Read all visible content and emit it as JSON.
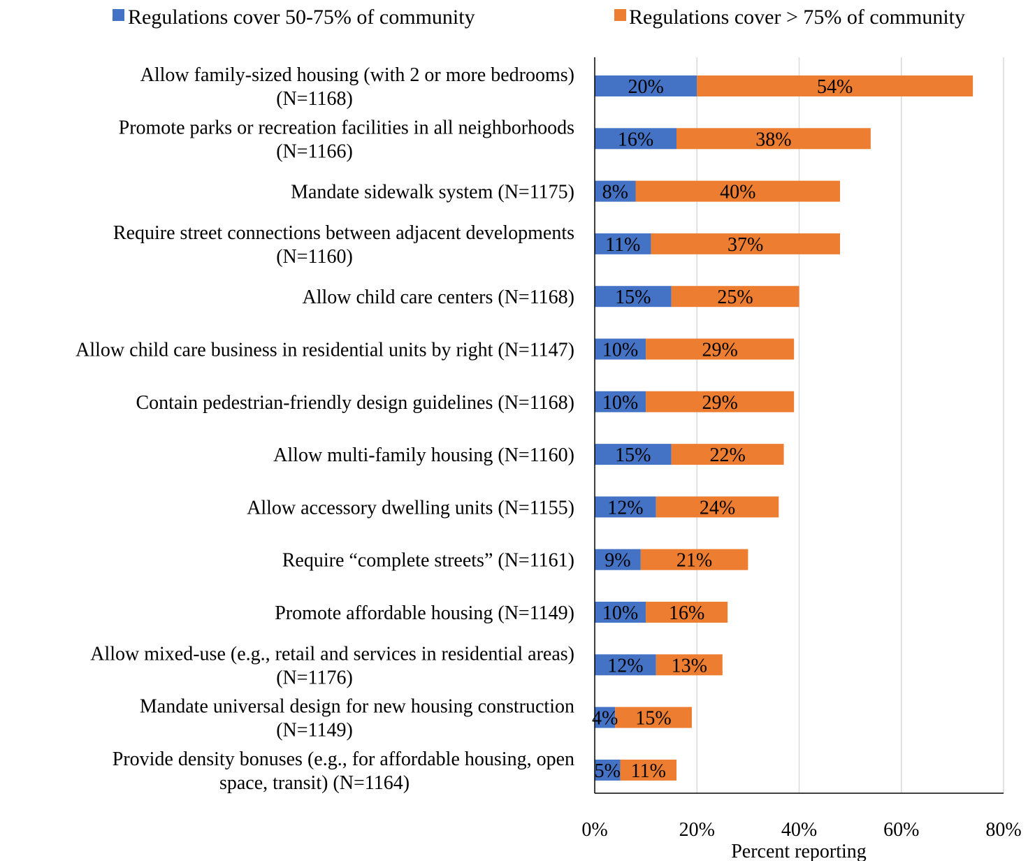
{
  "chart_data": {
    "type": "bar",
    "orientation": "horizontal",
    "stacked": true,
    "xlabel": "Percent reporting",
    "xlim": [
      0,
      80
    ],
    "x_ticks": [
      "0%",
      "20%",
      "40%",
      "60%",
      "80%"
    ],
    "grid": "vertical",
    "legend_position": "top",
    "categories": [
      [
        "Allow family-sized housing (with 2 or more bedrooms)",
        "(N=1168)"
      ],
      [
        "Promote parks or recreation facilities in all neighborhoods",
        "(N=1166)"
      ],
      [
        "Mandate sidewalk system (N=1175)"
      ],
      [
        "Require street connections between adjacent developments",
        "(N=1160)"
      ],
      [
        "Allow child care centers (N=1168)"
      ],
      [
        "Allow child care business in residential units by right (N=1147)"
      ],
      [
        "Contain pedestrian-friendly design guidelines (N=1168)"
      ],
      [
        "Allow multi-family housing (N=1160)"
      ],
      [
        "Allow accessory dwelling units  (N=1155)"
      ],
      [
        "Require “complete streets” (N=1161)"
      ],
      [
        "Promote affordable housing (N=1149)"
      ],
      [
        "Allow mixed-use (e.g., retail and services in residential areas)",
        "(N=1176)"
      ],
      [
        "Mandate universal design for new housing construction",
        "(N=1149)"
      ],
      [
        "Provide density bonuses (e.g., for affordable housing, open",
        "space, transit) (N=1164)"
      ]
    ],
    "series": [
      {
        "name": "Regulations cover 50-75% of community",
        "color": "#4472C4",
        "values": [
          20,
          16,
          8,
          11,
          15,
          10,
          10,
          15,
          12,
          9,
          10,
          12,
          4,
          5
        ],
        "labels": [
          "20%",
          "16%",
          "8%",
          "11%",
          "15%",
          "10%",
          "10%",
          "15%",
          "12%",
          "9%",
          "10%",
          "12%",
          "4%",
          "5%"
        ]
      },
      {
        "name": "Regulations cover > 75% of community",
        "color": "#ED7D31",
        "values": [
          54,
          38,
          40,
          37,
          25,
          29,
          29,
          22,
          24,
          21,
          16,
          13,
          15,
          11
        ],
        "labels": [
          "54%",
          "38%",
          "40%",
          "37%",
          "25%",
          "29%",
          "29%",
          "22%",
          "24%",
          "21%",
          "16%",
          "13%",
          "15%",
          "11%"
        ]
      }
    ]
  }
}
